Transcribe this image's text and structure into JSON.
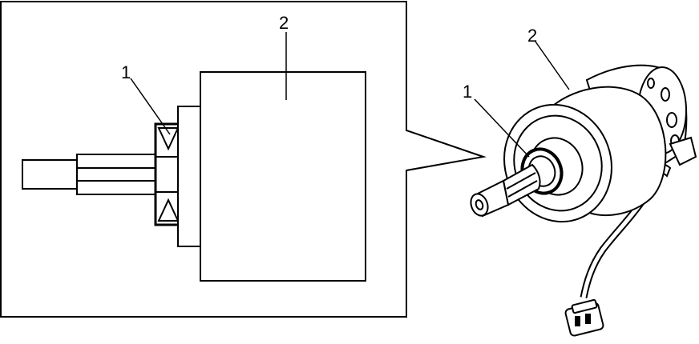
{
  "callouts": {
    "detail_bearing": "1",
    "detail_motor": "2",
    "assembly_bearing": "1",
    "assembly_motor": "2"
  },
  "colors": {
    "line": "#000000",
    "fill": "#ffffff"
  }
}
